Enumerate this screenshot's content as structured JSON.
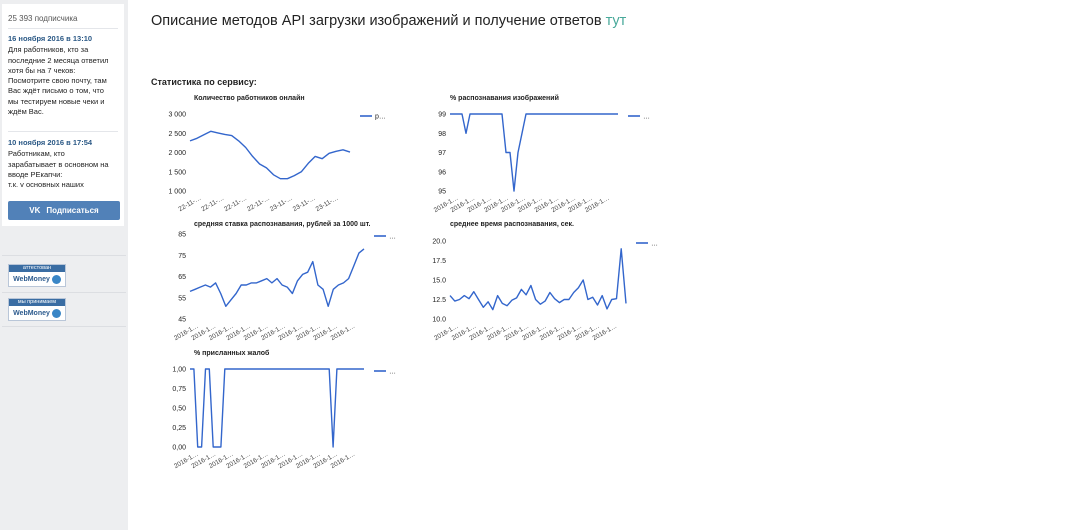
{
  "sidebar": {
    "subscribers": "25 393 подписчика",
    "posts": [
      {
        "date": "16 ноября 2016 в 13:10",
        "lines": [
          "Для работников, кто за",
          "последние 2 месяца ответил",
          "хотя бы на 7 чеков:",
          "Посмотрите свою почту, там",
          "Вас ждёт письмо о том, что",
          "мы тестируем новые чеки и",
          "ждём Вас."
        ]
      },
      {
        "date": "10 ноября 2016 в 17:54",
        "lines": [
          "Работникам, кто",
          "зарабатывает в основном на",
          "вводе РЕкапчи:",
          "т.к. v основных наших"
        ]
      }
    ],
    "subscribe_button": {
      "logo": "VK",
      "label": "Подписаться"
    },
    "badges": [
      {
        "top": "аттестован",
        "bottom": "WebMoney"
      },
      {
        "top": "мы принимаем",
        "bottom": "WebMoney"
      }
    ]
  },
  "main": {
    "title": "Описание методов API загрузки изображений и получение ответов",
    "title_link": "тут",
    "stats_label": "Статистика по сервису:"
  },
  "colors": {
    "line": "#3366cc",
    "link": "#49a99a",
    "vk_button": "#5181b8",
    "sidebar_bg": "#edeef0"
  },
  "chart_data": [
    {
      "type": "line",
      "title": "Количество работников онлайн",
      "y_ticks": [
        "3 000",
        "2 500",
        "2 000",
        "1 500",
        "1 000"
      ],
      "ylim": [
        1000,
        3000
      ],
      "x_ticks": [
        "22-11-…",
        "22-11-…",
        "22-11-…",
        "22-11-…",
        "23-11-…",
        "23-11-…",
        "23-11-…"
      ],
      "legend": "р…",
      "values": [
        2300,
        2370,
        2460,
        2550,
        2510,
        2470,
        2440,
        2300,
        2130,
        1900,
        1700,
        1600,
        1420,
        1320,
        1320,
        1400,
        1500,
        1720,
        1900,
        1840,
        1980,
        2030,
        2070,
        2010
      ]
    },
    {
      "type": "line",
      "title": "% распознавания изображений",
      "y_ticks": [
        "99",
        "98",
        "97",
        "96",
        "95"
      ],
      "ylim": [
        95,
        99
      ],
      "x_ticks": [
        "2016-1…",
        "2016-1…",
        "2016-1…",
        "2016-1…",
        "2016-1…",
        "2016-1…",
        "2016-1…",
        "2016-1…",
        "2016-1…",
        "2016-1…"
      ],
      "legend": "…",
      "values": [
        99,
        99,
        99,
        99,
        98,
        99,
        99,
        99,
        99,
        99,
        99,
        99,
        99,
        99,
        97,
        97,
        95,
        97,
        98,
        99,
        99,
        99,
        99,
        99,
        99,
        99,
        99,
        99,
        99,
        99,
        99,
        99,
        99,
        99,
        99,
        99,
        99,
        99,
        99,
        99,
        99,
        99,
        99
      ]
    },
    {
      "type": "line",
      "title": "средняя ставка распознавания, рублей за 1000 шт.",
      "y_ticks": [
        "85",
        "75",
        "65",
        "55",
        "45"
      ],
      "ylim": [
        45,
        85
      ],
      "x_ticks": [
        "2016-1…",
        "2016-1…",
        "2016-1…",
        "2016-1…",
        "2016-1…",
        "2016-1…",
        "2016-1…",
        "2016-1…",
        "2016-1…",
        "2016-1…"
      ],
      "legend": "…",
      "values": [
        58,
        59,
        60,
        61,
        60,
        62,
        57,
        51,
        54,
        57,
        61,
        61,
        62,
        62,
        63,
        64,
        62,
        64,
        61,
        60,
        57,
        63,
        66,
        67,
        72,
        61,
        59,
        51,
        59,
        61,
        62,
        64,
        70,
        76,
        78
      ]
    },
    {
      "type": "line",
      "title": "среднее время распознавания, сек.",
      "y_ticks": [
        "20.0",
        "17.5",
        "15.0",
        "12.5",
        "10.0"
      ],
      "ylim": [
        10,
        20
      ],
      "x_ticks": [
        "2016-1…",
        "2016-1…",
        "2016-1…",
        "2016-1…",
        "2016-1…",
        "2016-1…",
        "2016-1…",
        "2016-1…",
        "2016-1…",
        "2016-1…"
      ],
      "legend": "…",
      "values": [
        13,
        12.3,
        12.5,
        13,
        12.6,
        13.5,
        12.5,
        11.5,
        12.2,
        11.2,
        13,
        12,
        11.7,
        12.4,
        12.7,
        13.8,
        13.1,
        14.3,
        12.5,
        11.9,
        12.3,
        13.4,
        12.6,
        12.1,
        12.5,
        12.5,
        13.4,
        14,
        15,
        12.5,
        12.8,
        11.8,
        13,
        11.3,
        12.5,
        12.6,
        19,
        12
      ]
    },
    {
      "type": "line",
      "title": "% присланных жалоб",
      "y_ticks": [
        "1,00",
        "0,75",
        "0,50",
        "0,25",
        "0,00"
      ],
      "ylim": [
        0,
        1
      ],
      "x_ticks": [
        "2016-1…",
        "2016-1…",
        "2016-1…",
        "2016-1…",
        "2016-1…",
        "2016-1…",
        "2016-1…",
        "2016-1…",
        "2016-1…",
        "2016-1…"
      ],
      "legend": "…",
      "values": [
        1,
        1,
        0,
        0,
        1,
        1,
        0,
        0,
        0,
        1,
        1,
        1,
        1,
        1,
        1,
        1,
        1,
        1,
        1,
        1,
        1,
        1,
        1,
        1,
        1,
        1,
        1,
        1,
        1,
        1,
        1,
        1,
        1,
        1,
        1,
        1,
        1,
        0,
        1,
        1,
        1,
        1,
        1,
        1,
        1,
        1
      ]
    }
  ]
}
